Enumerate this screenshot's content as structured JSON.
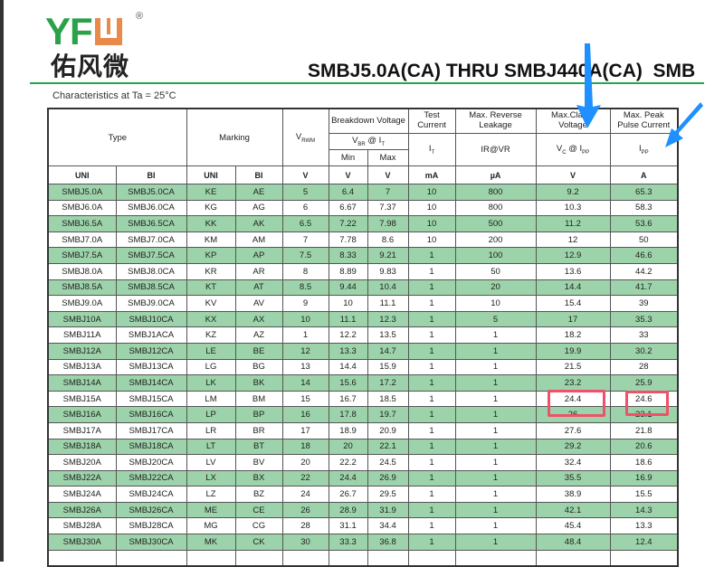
{
  "logo": {
    "latin": "YFW",
    "chinese": "佑风微",
    "registered": "®",
    "colors": {
      "green": "#2aa14a",
      "orange": "#e9894a"
    }
  },
  "title": "SMBJ5.0A(CA) THRU SMBJ440A(CA)  SMB",
  "condition": "Characteristics at Ta = 25°C",
  "headers": {
    "type": "Type",
    "marking": "Marking",
    "vrwm": "V",
    "vrwm_sub": "RWM",
    "breakdown": "Breakdown Voltage",
    "vbr": "V",
    "vbr_sub": "BR",
    "vbr_at": " @ I",
    "vbr_at_sub": "T",
    "min": "Min",
    "max": "Max",
    "test_current": "Test Current",
    "it": "I",
    "it_sub": "T",
    "leakage": "Max. Reverse Leakage",
    "ir": "IR@VR",
    "clamp": "Max.Clamp Voltage",
    "vc": "V",
    "vc_sub": "C",
    "vc_at": " @  I",
    "vc_at_sub": "PP",
    "peak": "Max. Peak Pulse Current",
    "ipp": "I",
    "ipp_sub": "PP"
  },
  "units": [
    "UNI",
    "BI",
    "UNI",
    "BI",
    "V",
    "V",
    "V",
    "mA",
    "µA",
    "V",
    "A"
  ],
  "rows": [
    [
      "SMBJ5.0A",
      "SMBJ5.0CA",
      "KE",
      "AE",
      "5",
      "6.4",
      "7",
      "10",
      "800",
      "9.2",
      "65.3"
    ],
    [
      "SMBJ6.0A",
      "SMBJ6.0CA",
      "KG",
      "AG",
      "6",
      "6.67",
      "7.37",
      "10",
      "800",
      "10.3",
      "58.3"
    ],
    [
      "SMBJ6.5A",
      "SMBJ6.5CA",
      "KK",
      "AK",
      "6.5",
      "7.22",
      "7.98",
      "10",
      "500",
      "11.2",
      "53.6"
    ],
    [
      "SMBJ7.0A",
      "SMBJ7.0CA",
      "KM",
      "AM",
      "7",
      "7.78",
      "8.6",
      "10",
      "200",
      "12",
      "50"
    ],
    [
      "SMBJ7.5A",
      "SMBJ7.5CA",
      "KP",
      "AP",
      "7.5",
      "8.33",
      "9.21",
      "1",
      "100",
      "12.9",
      "46.6"
    ],
    [
      "SMBJ8.0A",
      "SMBJ8.0CA",
      "KR",
      "AR",
      "8",
      "8.89",
      "9.83",
      "1",
      "50",
      "13.6",
      "44.2"
    ],
    [
      "SMBJ8.5A",
      "SMBJ8.5CA",
      "KT",
      "AT",
      "8.5",
      "9.44",
      "10.4",
      "1",
      "20",
      "14.4",
      "41.7"
    ],
    [
      "SMBJ9.0A",
      "SMBJ9.0CA",
      "KV",
      "AV",
      "9",
      "10",
      "11.1",
      "1",
      "10",
      "15.4",
      "39"
    ],
    [
      "SMBJ10A",
      "SMBJ10CA",
      "KX",
      "AX",
      "10",
      "11.1",
      "12.3",
      "1",
      "5",
      "17",
      "35.3"
    ],
    [
      "SMBJ11A",
      "SMBJ1ACA",
      "KZ",
      "AZ",
      "1",
      "12.2",
      "13.5",
      "1",
      "1",
      "18.2",
      "33"
    ],
    [
      "SMBJ12A",
      "SMBJ12CA",
      "LE",
      "BE",
      "12",
      "13.3",
      "14.7",
      "1",
      "1",
      "19.9",
      "30.2"
    ],
    [
      "SMBJ13A",
      "SMBJ13CA",
      "LG",
      "BG",
      "13",
      "14.4",
      "15.9",
      "1",
      "1",
      "21.5",
      "28"
    ],
    [
      "SMBJ14A",
      "SMBJ14CA",
      "LK",
      "BK",
      "14",
      "15.6",
      "17.2",
      "1",
      "1",
      "23.2",
      "25.9"
    ],
    [
      "SMBJ15A",
      "SMBJ15CA",
      "LM",
      "BM",
      "15",
      "16.7",
      "18.5",
      "1",
      "1",
      "24.4",
      "24.6"
    ],
    [
      "SMBJ16A",
      "SMBJ16CA",
      "LP",
      "BP",
      "16",
      "17.8",
      "19.7",
      "1",
      "1",
      "26",
      "23.1"
    ],
    [
      "SMBJ17A",
      "SMBJ17CA",
      "LR",
      "BR",
      "17",
      "18.9",
      "20.9",
      "1",
      "1",
      "27.6",
      "21.8"
    ],
    [
      "SMBJ18A",
      "SMBJ18CA",
      "LT",
      "BT",
      "18",
      "20",
      "22.1",
      "1",
      "1",
      "29.2",
      "20.6"
    ],
    [
      "SMBJ20A",
      "SMBJ20CA",
      "LV",
      "BV",
      "20",
      "22.2",
      "24.5",
      "1",
      "1",
      "32.4",
      "18.6"
    ],
    [
      "SMBJ22A",
      "SMBJ22CA",
      "LX",
      "BX",
      "22",
      "24.4",
      "26.9",
      "1",
      "1",
      "35.5",
      "16.9"
    ],
    [
      "SMBJ24A",
      "SMBJ24CA",
      "LZ",
      "BZ",
      "24",
      "26.7",
      "29.5",
      "1",
      "1",
      "38.9",
      "15.5"
    ],
    [
      "SMBJ26A",
      "SMBJ26CA",
      "ME",
      "CE",
      "26",
      "28.9",
      "31.9",
      "1",
      "1",
      "42.1",
      "14.3"
    ],
    [
      "SMBJ28A",
      "SMBJ28CA",
      "MG",
      "CG",
      "28",
      "31.1",
      "34.4",
      "1",
      "1",
      "45.4",
      "13.3"
    ],
    [
      "SMBJ30A",
      "SMBJ30CA",
      "MK",
      "CK",
      "30",
      "33.3",
      "36.8",
      "1",
      "1",
      "48.4",
      "12.4"
    ]
  ],
  "row_fill_color": "#9dd3ab",
  "annotations": {
    "highlight_color": "#f0506a",
    "arrow_color": "#1e90ff",
    "highlighted_row": "SMBJ15A",
    "highlighted_values": [
      "24.4",
      "24.6"
    ]
  }
}
